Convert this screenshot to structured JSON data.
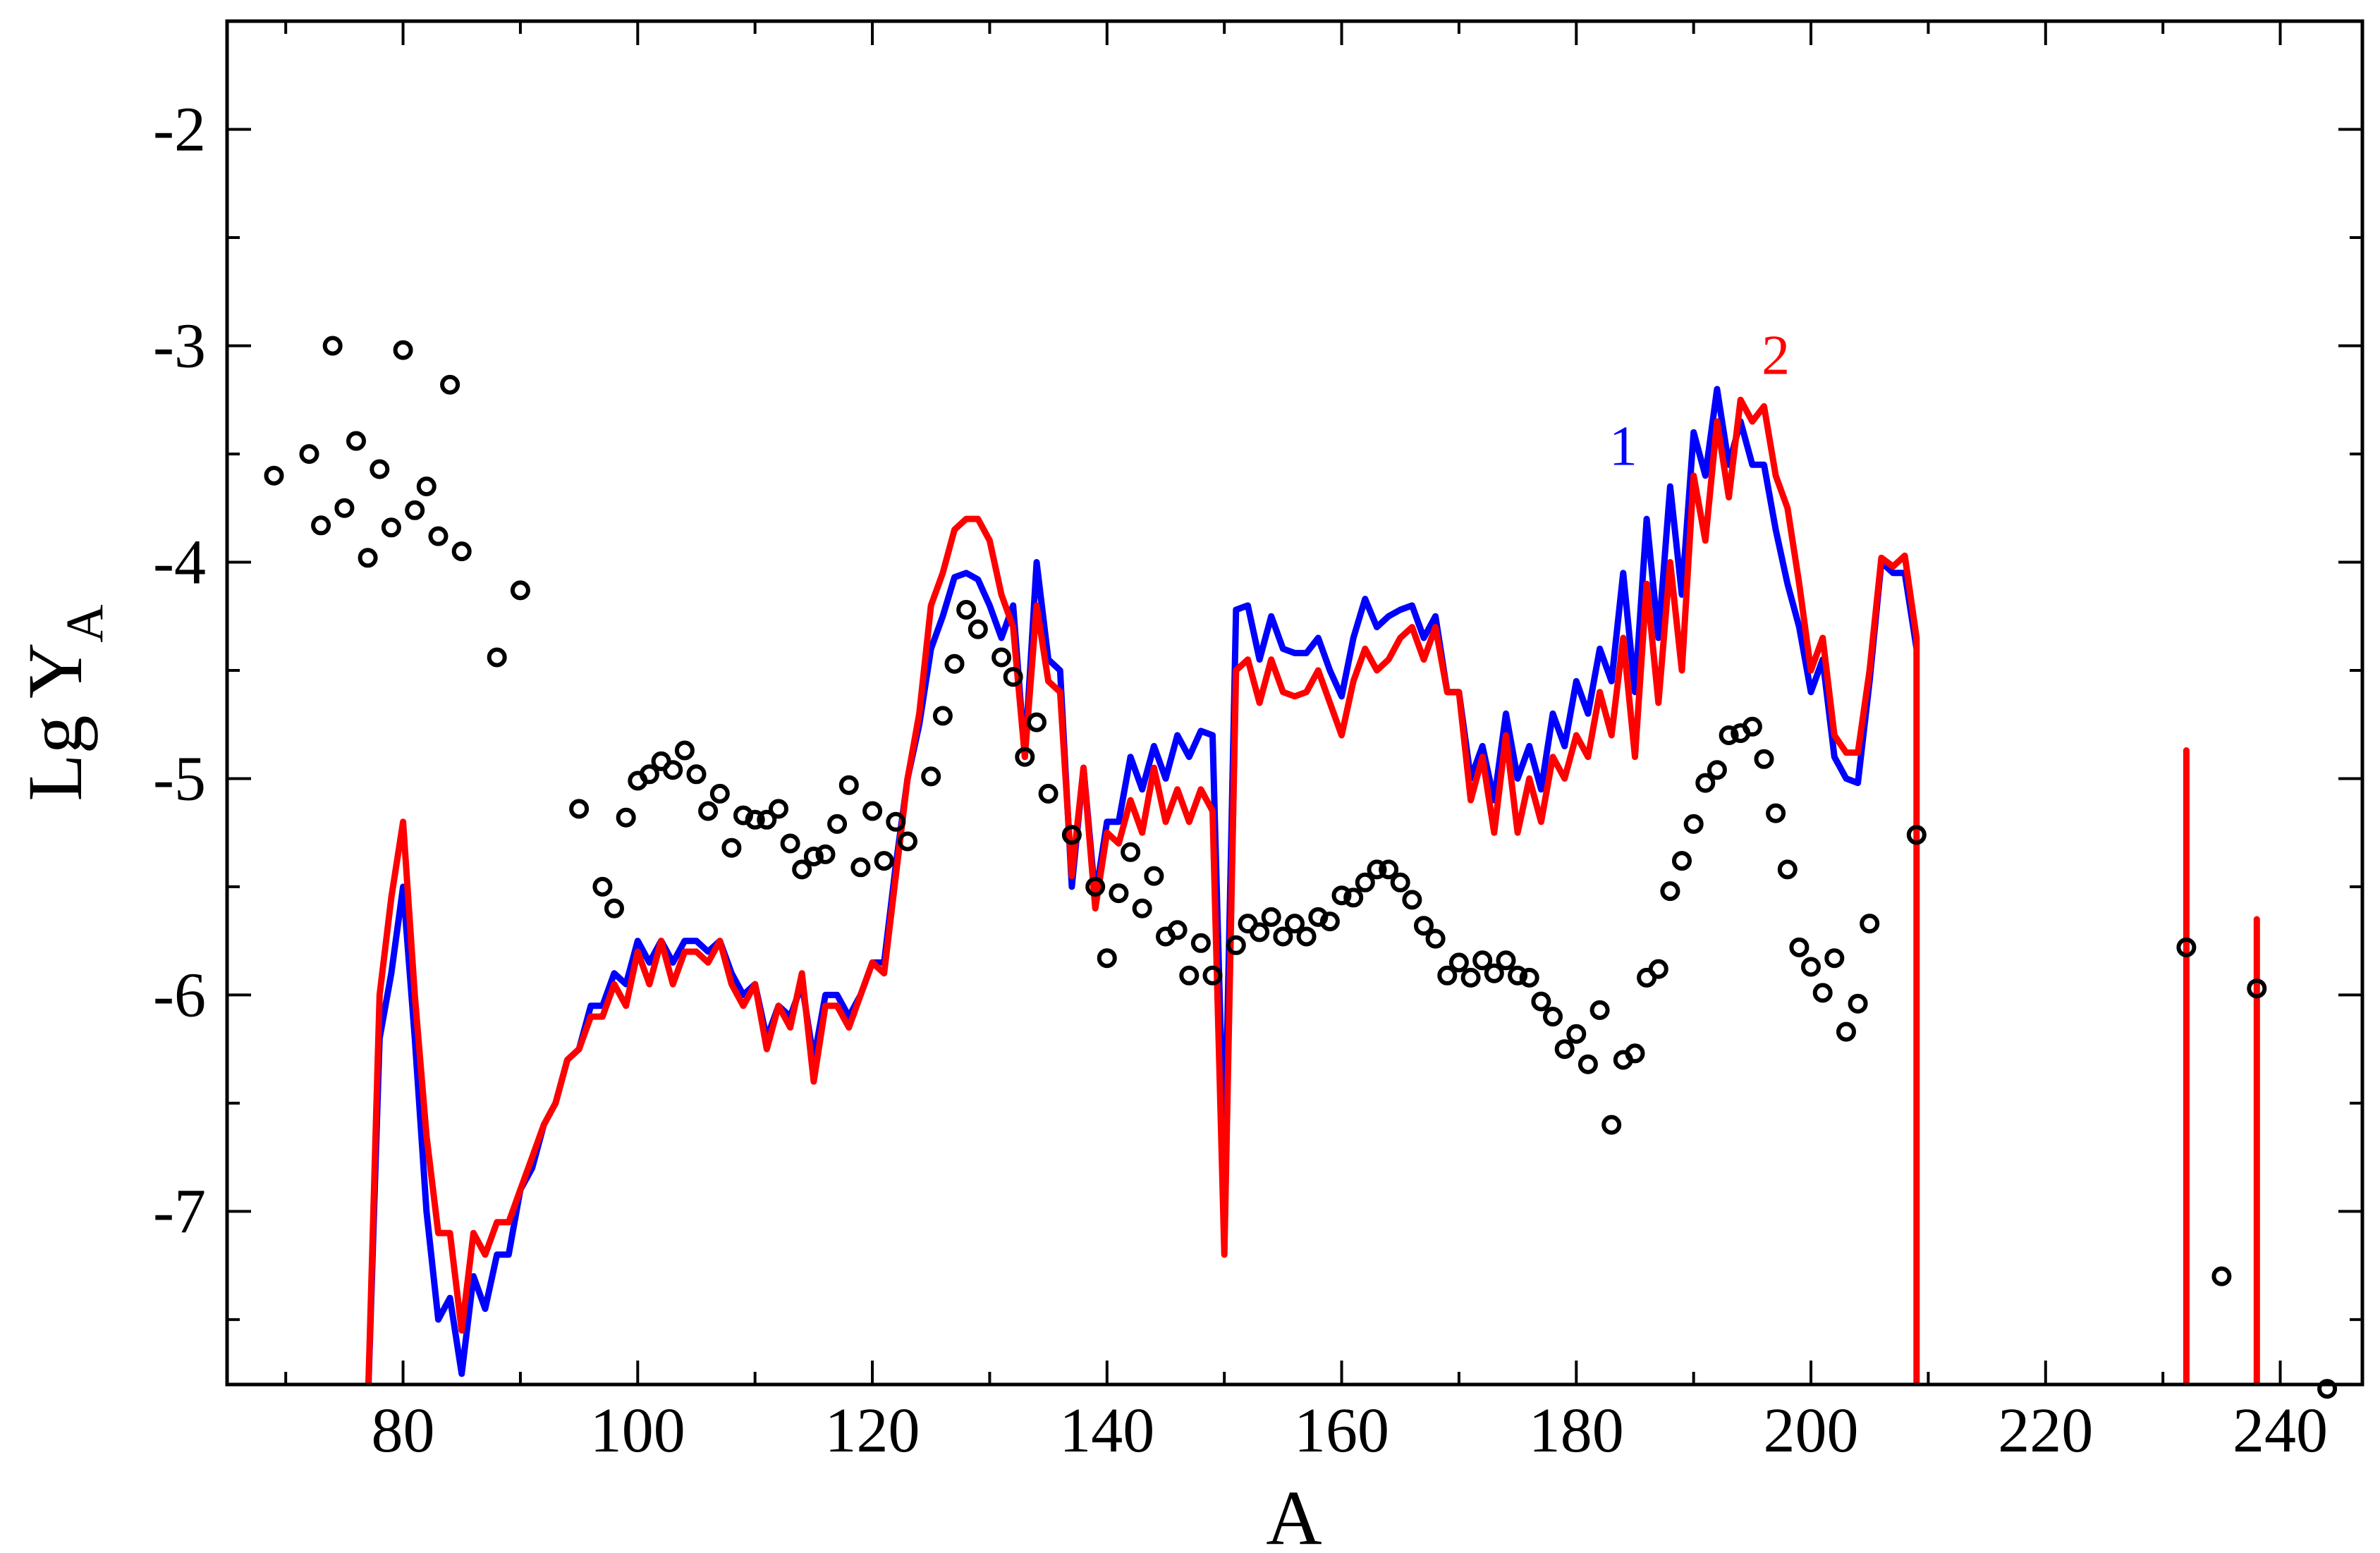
{
  "chart_data": {
    "type": "line",
    "title": "",
    "xlabel": "A",
    "ylabel": {
      "main": "Lg Y",
      "subscript": "A"
    },
    "xlim": [
      65,
      247
    ],
    "ylim": [
      -7.8,
      -1.5
    ],
    "xticks": [
      80,
      100,
      120,
      140,
      160,
      180,
      200,
      220,
      240
    ],
    "xtick_labels": [
      "80",
      "100",
      "120",
      "140",
      "160",
      "180",
      "200",
      "220",
      "240"
    ],
    "yticks": [
      -7,
      -6,
      -5,
      -4,
      -3,
      -2
    ],
    "ytick_labels": [
      "-7",
      "-6",
      "-5",
      "-4",
      "-3",
      "-2"
    ],
    "grid": false,
    "colors": {
      "series1": "#0000ff",
      "series2": "#ff0000",
      "points": "#000000"
    },
    "series": [
      {
        "name": "1",
        "kind": "line",
        "label_pos": [
          184,
          -3.55
        ],
        "x": [
          77,
          78,
          79,
          80,
          81,
          82,
          83,
          84,
          85,
          86,
          87,
          88,
          89,
          90,
          91,
          92,
          93,
          94,
          95,
          96,
          97,
          98,
          99,
          100,
          101,
          102,
          103,
          104,
          105,
          106,
          107,
          108,
          109,
          110,
          111,
          112,
          113,
          114,
          115,
          116,
          117,
          118,
          119,
          120,
          121,
          122,
          123,
          124,
          125,
          126,
          127,
          128,
          129,
          130,
          131,
          132,
          133,
          134,
          135,
          136,
          137,
          138,
          139,
          140,
          141,
          142,
          143,
          144,
          145,
          146,
          147,
          148,
          149,
          150,
          151,
          152,
          153,
          154,
          155,
          156,
          157,
          158,
          159,
          160,
          161,
          162,
          163,
          164,
          165,
          166,
          167,
          168,
          169,
          170,
          171,
          172,
          173,
          174,
          175,
          176,
          177,
          178,
          179,
          180,
          181,
          182,
          183,
          184,
          185,
          186,
          187,
          188,
          189,
          190,
          191,
          192,
          193,
          194,
          195,
          196,
          197,
          198,
          199,
          200,
          201,
          202,
          203,
          204,
          205,
          206,
          207,
          208,
          209
        ],
        "y": [
          -7.9,
          -6.2,
          -5.9,
          -5.5,
          -6.2,
          -7.0,
          -7.5,
          -7.4,
          -7.75,
          -7.3,
          -7.45,
          -7.2,
          -7.2,
          -6.9,
          -6.8,
          -6.6,
          -6.5,
          -6.3,
          -6.25,
          -6.05,
          -6.05,
          -5.9,
          -5.95,
          -5.75,
          -5.85,
          -5.75,
          -5.85,
          -5.75,
          -5.75,
          -5.8,
          -5.75,
          -5.9,
          -6.0,
          -5.95,
          -6.2,
          -6.05,
          -6.1,
          -5.95,
          -6.3,
          -6.0,
          -6.0,
          -6.1,
          -6.0,
          -5.85,
          -5.85,
          -5.4,
          -5.0,
          -4.75,
          -4.4,
          -4.25,
          -4.07,
          -4.05,
          -4.08,
          -4.2,
          -4.35,
          -4.2,
          -4.9,
          -4.0,
          -4.45,
          -4.5,
          -5.5,
          -4.95,
          -5.55,
          -5.2,
          -5.2,
          -4.9,
          -5.05,
          -4.85,
          -5.0,
          -4.8,
          -4.9,
          -4.78,
          -4.8,
          -6.8,
          -4.22,
          -4.2,
          -4.45,
          -4.25,
          -4.4,
          -4.42,
          -4.42,
          -4.35,
          -4.5,
          -4.62,
          -4.35,
          -4.17,
          -4.3,
          -4.25,
          -4.22,
          -4.2,
          -4.35,
          -4.25,
          -4.6,
          -4.6,
          -5.0,
          -4.85,
          -5.1,
          -4.7,
          -5.0,
          -4.85,
          -5.05,
          -4.7,
          -4.85,
          -4.55,
          -4.7,
          -4.4,
          -4.55,
          -4.05,
          -4.6,
          -3.8,
          -4.35,
          -3.65,
          -4.15,
          -3.4,
          -3.6,
          -3.2,
          -3.55,
          -3.35,
          -3.55,
          -3.55,
          -3.85,
          -4.1,
          -4.3,
          -4.6,
          -4.45,
          -4.9,
          -5.0,
          -5.02,
          -4.55,
          -4.0,
          -4.05,
          -4.05,
          -4.4
        ]
      },
      {
        "name": "2",
        "kind": "line",
        "label_pos": [
          197,
          -3.13
        ],
        "x": [
          77,
          78,
          79,
          80,
          81,
          82,
          83,
          84,
          85,
          86,
          87,
          88,
          89,
          90,
          91,
          92,
          93,
          94,
          95,
          96,
          97,
          98,
          99,
          100,
          101,
          102,
          103,
          104,
          105,
          106,
          107,
          108,
          109,
          110,
          111,
          112,
          113,
          114,
          115,
          116,
          117,
          118,
          119,
          120,
          121,
          122,
          123,
          124,
          125,
          126,
          127,
          128,
          129,
          130,
          131,
          132,
          133,
          134,
          135,
          136,
          137,
          138,
          139,
          140,
          141,
          142,
          143,
          144,
          145,
          146,
          147,
          148,
          149,
          150,
          151,
          152,
          153,
          154,
          155,
          156,
          157,
          158,
          159,
          160,
          161,
          162,
          163,
          164,
          165,
          166,
          167,
          168,
          169,
          170,
          171,
          172,
          173,
          174,
          175,
          176,
          177,
          178,
          179,
          180,
          181,
          182,
          183,
          184,
          185,
          186,
          187,
          188,
          189,
          190,
          191,
          192,
          193,
          194,
          195,
          196,
          197,
          198,
          199,
          200,
          201,
          202,
          203,
          204,
          205,
          206,
          207,
          208,
          209,
          209
        ],
        "y": [
          -7.9,
          -6.0,
          -5.55,
          -5.2,
          -6.0,
          -6.65,
          -7.1,
          -7.1,
          -7.55,
          -7.1,
          -7.2,
          -7.05,
          -7.05,
          -6.9,
          -6.75,
          -6.6,
          -6.5,
          -6.3,
          -6.25,
          -6.1,
          -6.1,
          -5.95,
          -6.05,
          -5.8,
          -5.95,
          -5.75,
          -5.95,
          -5.8,
          -5.8,
          -5.85,
          -5.75,
          -5.95,
          -6.05,
          -5.95,
          -6.25,
          -6.05,
          -6.15,
          -5.9,
          -6.4,
          -6.05,
          -6.05,
          -6.15,
          -6.0,
          -5.85,
          -5.9,
          -5.45,
          -5.0,
          -4.7,
          -4.2,
          -4.05,
          -3.85,
          -3.8,
          -3.8,
          -3.9,
          -4.15,
          -4.3,
          -4.9,
          -4.2,
          -4.55,
          -4.6,
          -5.45,
          -4.95,
          -5.6,
          -5.25,
          -5.3,
          -5.1,
          -5.25,
          -4.95,
          -5.2,
          -5.05,
          -5.2,
          -5.05,
          -5.15,
          -7.2,
          -4.5,
          -4.45,
          -4.65,
          -4.45,
          -4.6,
          -4.62,
          -4.6,
          -4.5,
          -4.65,
          -4.8,
          -4.55,
          -4.4,
          -4.5,
          -4.45,
          -4.35,
          -4.3,
          -4.45,
          -4.3,
          -4.6,
          -4.6,
          -5.1,
          -4.9,
          -5.25,
          -4.8,
          -5.25,
          -5.0,
          -5.2,
          -4.9,
          -5.0,
          -4.8,
          -4.9,
          -4.6,
          -4.8,
          -4.35,
          -4.9,
          -4.1,
          -4.65,
          -4.0,
          -4.5,
          -3.6,
          -3.9,
          -3.35,
          -3.7,
          -3.25,
          -3.35,
          -3.28,
          -3.6,
          -3.75,
          -4.1,
          -4.5,
          -4.35,
          -4.8,
          -4.88,
          -4.88,
          -4.5,
          -3.98,
          -4.02,
          -3.97,
          -4.35,
          -7.9
        ]
      },
      {
        "name": "",
        "kind": "line",
        "x": [
          232,
          232,
          232
        ],
        "y": [
          -7.9,
          -4.87,
          -7.9
        ]
      },
      {
        "name": "",
        "kind": "line",
        "x": [
          238,
          238,
          238
        ],
        "y": [
          -7.9,
          -5.65,
          -7.9
        ]
      },
      {
        "name": "",
        "kind": "scatter",
        "x": [
          69,
          72,
          73,
          74,
          75,
          76,
          77,
          78,
          79,
          80,
          81,
          82,
          83,
          84,
          85,
          88,
          90,
          95,
          97,
          98,
          99,
          100,
          101,
          102,
          103,
          104,
          105,
          106,
          107,
          108,
          109,
          110,
          111,
          112,
          113,
          114,
          115,
          116,
          117,
          118,
          119,
          120,
          121,
          122,
          123,
          125,
          126,
          127,
          128,
          129,
          131,
          132,
          133,
          134,
          135,
          137,
          139,
          140,
          141,
          142,
          143,
          144,
          145,
          146,
          147,
          148,
          149,
          151,
          152,
          153,
          154,
          155,
          156,
          157,
          158,
          159,
          160,
          161,
          162,
          163,
          164,
          165,
          166,
          167,
          168,
          169,
          170,
          171,
          172,
          173,
          174,
          175,
          176,
          177,
          178,
          179,
          180,
          181,
          182,
          183,
          184,
          185,
          186,
          187,
          188,
          189,
          190,
          191,
          192,
          193,
          194,
          195,
          196,
          197,
          198,
          199,
          200,
          201,
          202,
          203,
          204,
          205,
          209,
          232,
          235,
          238,
          244
        ],
        "y": [
          -3.6,
          -3.5,
          -3.83,
          -3.0,
          -3.75,
          -3.44,
          -3.98,
          -3.57,
          -3.84,
          -3.02,
          -3.76,
          -3.65,
          -3.88,
          -3.18,
          -3.95,
          -4.44,
          -4.13,
          -5.14,
          -5.5,
          -5.6,
          -5.18,
          -5.01,
          -4.98,
          -4.92,
          -4.96,
          -4.87,
          -4.98,
          -5.15,
          -5.07,
          -5.32,
          -5.17,
          -5.19,
          -5.19,
          -5.14,
          -5.3,
          -5.42,
          -5.36,
          -5.35,
          -5.21,
          -5.03,
          -5.41,
          -5.15,
          -5.38,
          -5.2,
          -5.29,
          -4.99,
          -4.71,
          -4.47,
          -4.22,
          -4.31,
          -4.44,
          -4.53,
          -4.9,
          -4.74,
          -5.07,
          -5.26,
          -5.5,
          -5.83,
          -5.53,
          -5.34,
          -5.6,
          -5.45,
          -5.73,
          -5.7,
          -5.91,
          -5.76,
          -5.91,
          -5.77,
          -5.67,
          -5.71,
          -5.64,
          -5.73,
          -5.67,
          -5.73,
          -5.64,
          -5.66,
          -5.54,
          -5.55,
          -5.48,
          -5.42,
          -5.42,
          -5.48,
          -5.56,
          -5.68,
          -5.74,
          -5.91,
          -5.85,
          -5.92,
          -5.84,
          -5.9,
          -5.84,
          -5.91,
          -5.92,
          -6.03,
          -6.1,
          -6.25,
          -6.18,
          -6.32,
          -6.07,
          -6.6,
          -6.3,
          -6.27,
          -5.92,
          -5.88,
          -5.52,
          -5.38,
          -5.21,
          -5.02,
          -4.96,
          -4.8,
          -4.79,
          -4.76,
          -4.91,
          -5.16,
          -5.42,
          -5.78,
          -5.87,
          -5.99,
          -5.83,
          -6.17,
          -6.04,
          -5.67,
          -5.26,
          -5.78,
          -7.3,
          -5.97,
          -7.82
        ]
      }
    ]
  }
}
